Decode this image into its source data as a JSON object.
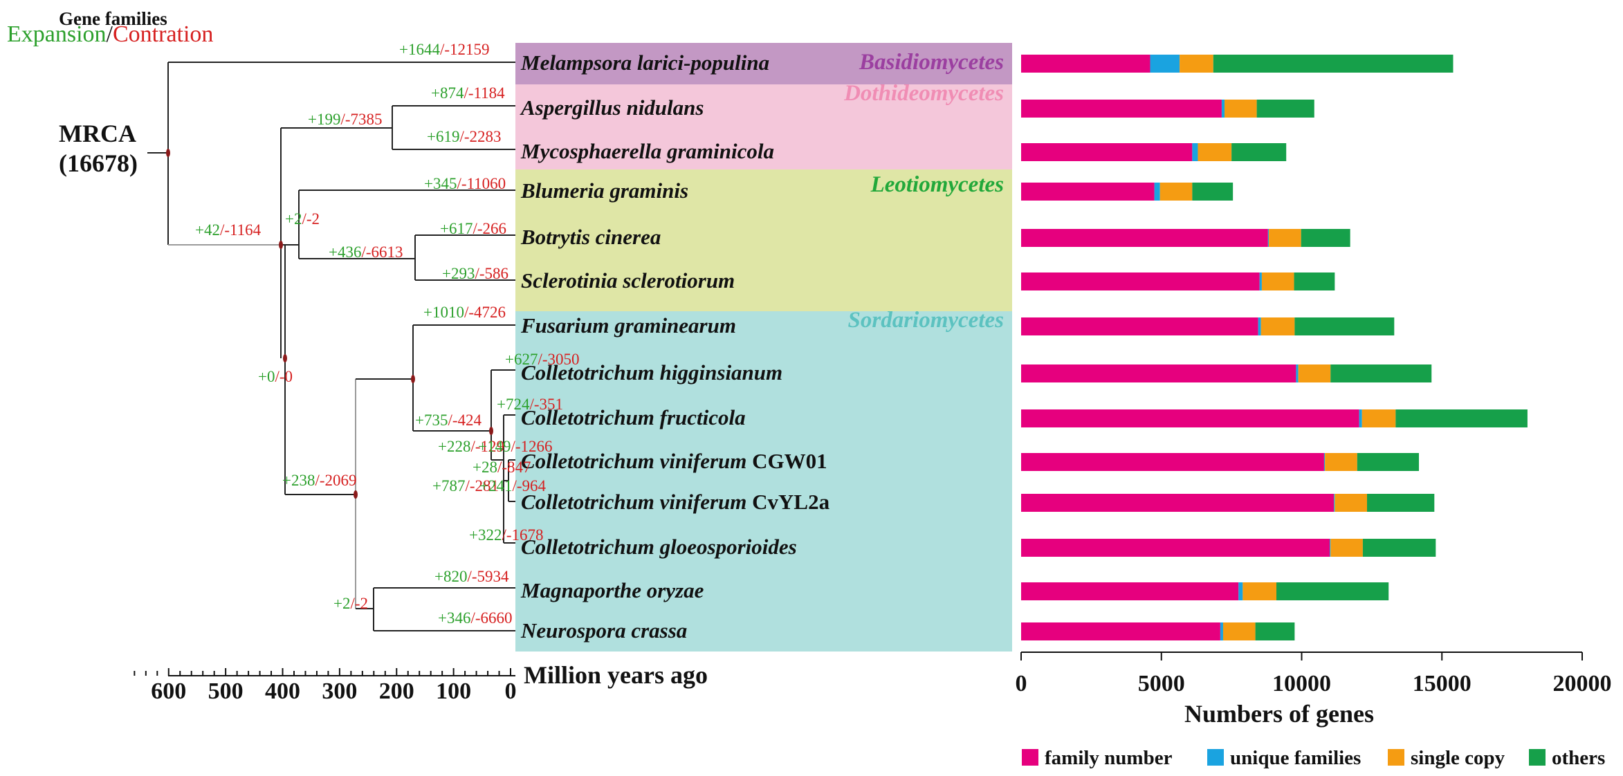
{
  "header": {
    "gene_families": "Gene families",
    "expansion_label": "Expansion",
    "separator": "/",
    "contraction_label": "Contration"
  },
  "colors": {
    "expansion": "#2ca02c",
    "contraction": "#d62020",
    "family_number": "#e6007e",
    "unique_families": "#1aa3e0",
    "single_copy": "#f59c12",
    "others": "#16a04a",
    "basidio_bg": "#c398c4",
    "dothideo_bg": "#f4c7da",
    "leotio_bg": "#dfe6a6",
    "sordario_bg": "#b0e0de",
    "node": "#8b1a1a"
  },
  "mrca": {
    "line1": "MRCA",
    "line2": "(16678)"
  },
  "clades": [
    {
      "name": "Basidiomycetes",
      "color": "#9b3fa0"
    },
    {
      "name": "Dothideomycetes",
      "color": "#f08db4"
    },
    {
      "name": "Leotiomycetes",
      "color": "#22a83a"
    },
    {
      "name": "Sordariomycetes",
      "color": "#5cc2c0"
    }
  ],
  "species": [
    {
      "parts": [
        {
          "t": "Melampsora larici-populina",
          "i": true
        }
      ]
    },
    {
      "parts": [
        {
          "t": "Aspergillus  nidulans",
          "i": true
        }
      ]
    },
    {
      "parts": [
        {
          "t": "Mycosphaerella graminicola",
          "i": true
        }
      ]
    },
    {
      "parts": [
        {
          "t": "Blumeria graminis",
          "i": true
        }
      ]
    },
    {
      "parts": [
        {
          "t": "Botrytis cinerea",
          "i": true
        }
      ]
    },
    {
      "parts": [
        {
          "t": "Sclerotinia sclerotiorum",
          "i": true
        }
      ]
    },
    {
      "parts": [
        {
          "t": "Fusarium graminearum",
          "i": true
        }
      ]
    },
    {
      "parts": [
        {
          "t": "Colletotrichum higginsianum",
          "i": true
        }
      ]
    },
    {
      "parts": [
        {
          "t": "Colletotrichum fructicola",
          "i": true
        }
      ]
    },
    {
      "parts": [
        {
          "t": "Colletotrichum viniferum",
          "i": true
        },
        {
          "t": " CGW01",
          "i": false
        }
      ]
    },
    {
      "parts": [
        {
          "t": "Colletotrichum viniferum",
          "i": true
        },
        {
          "t": " CvYL2a",
          "i": false
        }
      ]
    },
    {
      "parts": [
        {
          "t": "Colletotrichum gloeosporioides",
          "i": true
        }
      ]
    },
    {
      "parts": [
        {
          "t": "Magnaporthe oryzae",
          "i": true
        }
      ]
    },
    {
      "parts": [
        {
          "t": "Neurospora crassa",
          "i": true
        }
      ]
    }
  ],
  "tree_labels": [
    {
      "plus": "+1644",
      "minus": "-12159"
    },
    {
      "plus": "+874",
      "minus": "-1184"
    },
    {
      "plus": "+619",
      "minus": "-2283"
    },
    {
      "plus": "+199",
      "minus": "-7385"
    },
    {
      "plus": "+345",
      "minus": "-11060"
    },
    {
      "plus": "+617",
      "minus": "-266"
    },
    {
      "plus": "+293",
      "minus": "-586"
    },
    {
      "plus": "+436",
      "minus": "-6613"
    },
    {
      "plus": "+2",
      "minus": "-2"
    },
    {
      "plus": "+42",
      "minus": "-1164"
    },
    {
      "plus": "+1010",
      "minus": "-4726"
    },
    {
      "plus": "+627",
      "minus": "-3050"
    },
    {
      "plus": "+724",
      "minus": "-351"
    },
    {
      "plus": "+735",
      "minus": "-424"
    },
    {
      "plus": "+228",
      "minus": "-129"
    },
    {
      "plus": "+149",
      "minus": "-1266"
    },
    {
      "plus": "+28",
      "minus": "-847"
    },
    {
      "plus": "+787",
      "minus": "-281"
    },
    {
      "plus": "+241",
      "minus": "-964"
    },
    {
      "plus": "+322",
      "minus": "-1678"
    },
    {
      "plus": "+0",
      "minus": "-0"
    },
    {
      "plus": "+238",
      "minus": "-2069"
    },
    {
      "plus": "+820",
      "minus": "-5934"
    },
    {
      "plus": "+346",
      "minus": "-6660"
    },
    {
      "plus": "+2",
      "minus": "-2"
    }
  ],
  "time_axis": {
    "title": "Million years ago",
    "ticks": [
      "600",
      "500",
      "400",
      "300",
      "200",
      "100",
      "0"
    ]
  },
  "chart_data": {
    "type": "bar",
    "orientation": "horizontal",
    "stacked": true,
    "xlabel": "Numbers of genes",
    "xlim": [
      0,
      20000
    ],
    "xticks": [
      "0",
      "5000",
      "10000",
      "15000",
      "20000"
    ],
    "categories": [
      "Melampsora larici-populina",
      "Aspergillus nidulans",
      "Mycosphaerella graminicola",
      "Blumeria graminis",
      "Botrytis cinerea",
      "Sclerotinia sclerotiorum",
      "Fusarium graminearum",
      "Colletotrichum higginsianum",
      "Colletotrichum fructicola",
      "Colletotrichum viniferum CGW01",
      "Colletotrichum viniferum CvYL2a",
      "Colletotrichum gloeosporioides",
      "Magnaporthe oryzae",
      "Neurospora crassa"
    ],
    "series": [
      {
        "name": "family number",
        "color": "#e6007e",
        "values": [
          4600,
          7150,
          6100,
          4750,
          8800,
          8500,
          8450,
          9800,
          12050,
          10800,
          11150,
          11000,
          7750,
          7100
        ]
      },
      {
        "name": "unique families",
        "color": "#1aa3e0",
        "values": [
          1050,
          100,
          200,
          200,
          30,
          80,
          100,
          80,
          100,
          30,
          30,
          30,
          150,
          100
        ]
      },
      {
        "name": "single copy",
        "color": "#f59c12",
        "values": [
          1200,
          1150,
          1200,
          1150,
          1150,
          1150,
          1200,
          1150,
          1200,
          1150,
          1150,
          1150,
          1200,
          1150
        ]
      },
      {
        "name": "others",
        "color": "#16a04a",
        "values": [
          8550,
          2050,
          1950,
          1450,
          1750,
          1450,
          3550,
          3600,
          4700,
          2200,
          2400,
          2600,
          4000,
          1400
        ]
      }
    ],
    "legend_position": "bottom"
  }
}
